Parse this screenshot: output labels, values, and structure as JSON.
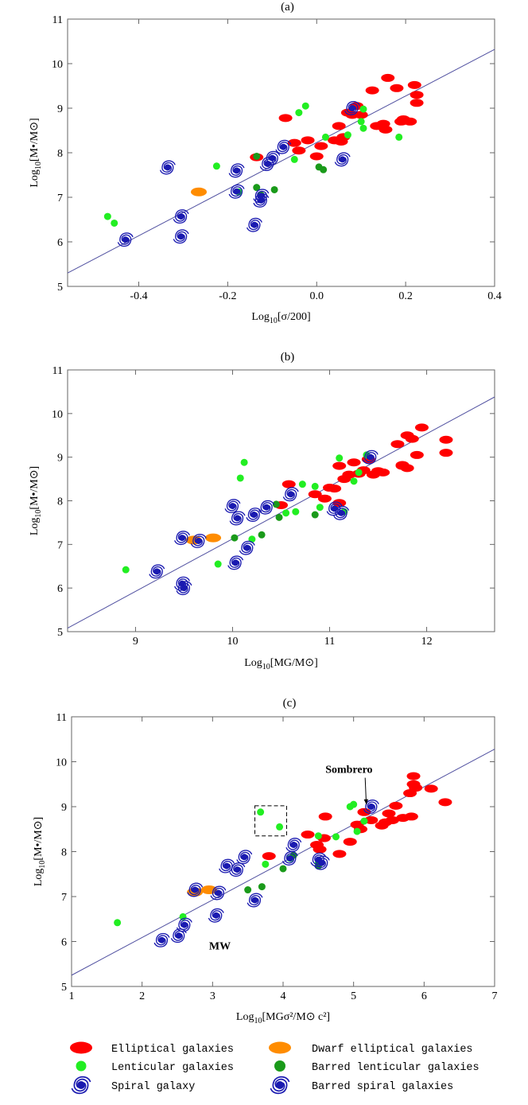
{
  "colors": {
    "elliptical": "#ff0000",
    "dwarf": "#ff8c00",
    "lenticular": "#22ee22",
    "barred_lenticular": "#1a9a1a",
    "spiral": "#1a1ab0",
    "fit_line": "#5050a0",
    "frame": "#666666"
  },
  "legend": [
    {
      "label": "Elliptical galaxies",
      "icon": "red-ellipse-icon",
      "key": "elliptical"
    },
    {
      "label": "Dwarf elliptical galaxies",
      "icon": "orange-ellipse-icon",
      "key": "dwarf"
    },
    {
      "label": "Lenticular galaxies",
      "icon": "light-green-dot-icon",
      "key": "lenticular"
    },
    {
      "label": "Barred lenticular galaxies",
      "icon": "dark-green-dot-icon",
      "key": "barred_lenticular"
    },
    {
      "label": "Spiral galaxy",
      "icon": "spiral-galaxy-icon",
      "key": "spiral"
    },
    {
      "label": "Barred spiral galaxies",
      "icon": "barred-spiral-galaxy-icon",
      "key": "barred_spiral"
    }
  ],
  "chart_data": [
    {
      "type": "scatter",
      "title": "(a)",
      "xlabel": "Log10[σ/200]",
      "ylabel": "Log10[M•/M⊙]",
      "xlim": [
        -0.56,
        0.4
      ],
      "ylim": [
        5,
        11
      ],
      "xticks": [
        "-0.4",
        "-0.2",
        "0.0",
        "0.2",
        "0.4"
      ],
      "xtick_values": [
        -0.4,
        -0.2,
        0.0,
        0.2,
        0.4
      ],
      "yticks": [
        "5",
        "6",
        "7",
        "8",
        "9",
        "10",
        "11"
      ],
      "ytick_values": [
        5,
        6,
        7,
        8,
        9,
        10,
        11
      ],
      "fit_line": [
        [
          -0.56,
          5.3
        ],
        [
          0.4,
          10.32
        ]
      ],
      "series": [
        {
          "name": "Elliptical galaxies",
          "key": "elliptical",
          "points": [
            [
              -0.07,
              8.78
            ],
            [
              -0.05,
              8.22
            ],
            [
              -0.04,
              8.05
            ],
            [
              -0.02,
              8.28
            ],
            [
              0.0,
              7.92
            ],
            [
              0.01,
              8.15
            ],
            [
              0.04,
              8.28
            ],
            [
              0.05,
              8.6
            ],
            [
              0.055,
              8.25
            ],
            [
              0.06,
              8.35
            ],
            [
              0.07,
              8.9
            ],
            [
              0.08,
              8.85
            ],
            [
              0.09,
              9.05
            ],
            [
              0.1,
              8.85
            ],
            [
              0.125,
              9.4
            ],
            [
              0.135,
              8.6
            ],
            [
              0.15,
              8.65
            ],
            [
              0.155,
              8.52
            ],
            [
              0.16,
              9.68
            ],
            [
              0.18,
              9.45
            ],
            [
              0.19,
              8.7
            ],
            [
              0.195,
              8.75
            ],
            [
              0.21,
              8.7
            ],
            [
              0.22,
              9.52
            ],
            [
              0.225,
              9.3
            ],
            [
              0.225,
              9.12
            ],
            [
              -0.135,
              7.9
            ]
          ]
        },
        {
          "name": "Dwarf elliptical galaxies",
          "key": "dwarf",
          "points": [
            [
              -0.265,
              7.12
            ]
          ]
        },
        {
          "name": "Lenticular galaxies",
          "key": "lenticular",
          "points": [
            [
              -0.47,
              6.57
            ],
            [
              -0.455,
              6.42
            ],
            [
              -0.225,
              7.7
            ],
            [
              -0.175,
              7.12
            ],
            [
              -0.05,
              7.85
            ],
            [
              -0.04,
              8.9
            ],
            [
              -0.025,
              9.05
            ],
            [
              0.02,
              8.35
            ],
            [
              0.07,
              8.4
            ],
            [
              0.1,
              8.7
            ],
            [
              0.105,
              8.98
            ],
            [
              0.105,
              8.55
            ],
            [
              0.185,
              8.35
            ]
          ]
        },
        {
          "name": "Barred lenticular galaxies",
          "key": "barred_lenticular",
          "points": [
            [
              -0.135,
              7.92
            ],
            [
              -0.135,
              7.22
            ],
            [
              -0.125,
              7.05
            ],
            [
              -0.095,
              7.17
            ],
            [
              0.005,
              7.68
            ],
            [
              0.015,
              7.62
            ]
          ]
        },
        {
          "name": "Spiral galaxy",
          "key": "spiral",
          "points": [
            [
              -0.43,
              6.05
            ],
            [
              -0.335,
              7.67
            ],
            [
              -0.305,
              6.57
            ],
            [
              -0.305,
              6.12
            ],
            [
              -0.18,
              7.6
            ],
            [
              -0.18,
              7.13
            ],
            [
              -0.14,
              6.38
            ],
            [
              -0.125,
              7.03
            ],
            [
              -0.125,
              6.93
            ],
            [
              -0.11,
              7.75
            ],
            [
              -0.1,
              7.88
            ],
            [
              -0.075,
              8.13
            ],
            [
              0.058,
              7.85
            ],
            [
              0.08,
              9.0
            ]
          ]
        }
      ]
    },
    {
      "type": "scatter",
      "title": "(b)",
      "xlabel": "Log10[MG/M⊙]",
      "ylabel": "Log10[M•/M⊙]",
      "xlim": [
        8.3,
        12.7
      ],
      "ylim": [
        5,
        11
      ],
      "xticks": [
        "9",
        "10",
        "11",
        "12"
      ],
      "xtick_values": [
        9,
        10,
        11,
        12
      ],
      "yticks": [
        "5",
        "6",
        "7",
        "8",
        "9",
        "10",
        "11"
      ],
      "ytick_values": [
        5,
        6,
        7,
        8,
        9,
        10,
        11
      ],
      "fit_line": [
        [
          8.3,
          5.08
        ],
        [
          12.7,
          10.38
        ]
      ],
      "series": [
        {
          "name": "Elliptical galaxies",
          "key": "elliptical",
          "points": [
            [
              10.5,
              7.9
            ],
            [
              10.58,
              8.38
            ],
            [
              10.85,
              8.15
            ],
            [
              10.95,
              8.05
            ],
            [
              11.0,
              8.3
            ],
            [
              11.05,
              8.28
            ],
            [
              11.1,
              8.8
            ],
            [
              11.1,
              7.95
            ],
            [
              11.15,
              8.5
            ],
            [
              11.2,
              8.6
            ],
            [
              11.25,
              8.88
            ],
            [
              11.3,
              8.62
            ],
            [
              11.35,
              8.7
            ],
            [
              11.4,
              8.95
            ],
            [
              11.45,
              8.6
            ],
            [
              11.5,
              8.68
            ],
            [
              11.55,
              8.65
            ],
            [
              11.7,
              9.3
            ],
            [
              11.75,
              8.8
            ],
            [
              11.8,
              9.5
            ],
            [
              11.8,
              8.75
            ],
            [
              11.85,
              9.42
            ],
            [
              11.9,
              9.05
            ],
            [
              11.95,
              9.68
            ],
            [
              12.2,
              9.4
            ],
            [
              12.2,
              9.1
            ],
            [
              11.75,
              8.82
            ]
          ]
        },
        {
          "name": "Dwarf elliptical galaxies",
          "key": "dwarf",
          "points": [
            [
              9.6,
              7.1
            ],
            [
              9.8,
              7.15
            ]
          ]
        },
        {
          "name": "Lenticular galaxies",
          "key": "lenticular",
          "points": [
            [
              8.9,
              6.42
            ],
            [
              9.85,
              6.55
            ],
            [
              10.08,
              8.52
            ],
            [
              10.12,
              8.88
            ],
            [
              10.2,
              7.12
            ],
            [
              10.55,
              7.72
            ],
            [
              10.65,
              7.75
            ],
            [
              10.72,
              8.38
            ],
            [
              10.85,
              8.33
            ],
            [
              10.9,
              7.85
            ],
            [
              11.1,
              8.98
            ],
            [
              11.15,
              7.75
            ],
            [
              11.25,
              8.45
            ],
            [
              11.3,
              8.65
            ],
            [
              11.38,
              9.05
            ]
          ]
        },
        {
          "name": "Barred lenticular galaxies",
          "key": "barred_lenticular",
          "points": [
            [
              10.02,
              7.15
            ],
            [
              10.3,
              7.22
            ],
            [
              10.45,
              7.92
            ],
            [
              10.48,
              7.62
            ],
            [
              10.85,
              7.68
            ]
          ]
        },
        {
          "name": "Spiral galaxy",
          "key": "spiral",
          "points": [
            [
              9.22,
              6.38
            ],
            [
              9.48,
              6.1
            ],
            [
              9.48,
              7.15
            ],
            [
              9.5,
              6.0
            ],
            [
              9.65,
              7.08
            ],
            [
              10.0,
              7.88
            ],
            [
              10.03,
              6.58
            ],
            [
              10.05,
              7.6
            ],
            [
              10.15,
              6.92
            ],
            [
              10.22,
              7.68
            ],
            [
              10.35,
              7.85
            ],
            [
              10.6,
              8.15
            ],
            [
              11.05,
              7.82
            ],
            [
              11.12,
              7.72
            ],
            [
              11.42,
              9.0
            ]
          ]
        }
      ]
    },
    {
      "type": "scatter",
      "title": "(c)",
      "xlabel": "Log10[MGσ²/M⊙ c²]",
      "ylabel": "Log10[M•/M⊙]",
      "xlim": [
        1,
        7
      ],
      "ylim": [
        5,
        11
      ],
      "xticks": [
        "1",
        "2",
        "3",
        "4",
        "5",
        "6",
        "7"
      ],
      "xtick_values": [
        1,
        2,
        3,
        4,
        5,
        6,
        7
      ],
      "yticks": [
        "5",
        "6",
        "7",
        "8",
        "9",
        "10",
        "11"
      ],
      "ytick_values": [
        5,
        6,
        7,
        8,
        9,
        10,
        11
      ],
      "fit_line": [
        [
          1,
          5.25
        ],
        [
          7,
          10.28
        ]
      ],
      "annotations": [
        {
          "text": "Sombrero",
          "at": [
            5.18,
            9.05
          ],
          "label_pos": [
            4.6,
            9.75
          ]
        },
        {
          "text": "MW",
          "at": [
            3.05,
            6.58
          ],
          "label_pos": [
            2.95,
            5.82
          ]
        }
      ],
      "highlight_box": {
        "x": [
          3.6,
          4.05
        ],
        "y": [
          8.35,
          9.02
        ]
      },
      "series": [
        {
          "name": "Elliptical galaxies",
          "key": "elliptical",
          "points": [
            [
              3.8,
              7.9
            ],
            [
              4.35,
              8.38
            ],
            [
              4.48,
              8.15
            ],
            [
              4.52,
              8.05
            ],
            [
              4.58,
              8.3
            ],
            [
              4.6,
              8.78
            ],
            [
              4.8,
              7.95
            ],
            [
              4.95,
              8.22
            ],
            [
              5.05,
              8.6
            ],
            [
              5.1,
              8.5
            ],
            [
              5.15,
              8.88
            ],
            [
              5.25,
              8.7
            ],
            [
              5.4,
              8.58
            ],
            [
              5.45,
              8.65
            ],
            [
              5.5,
              8.85
            ],
            [
              5.55,
              8.7
            ],
            [
              5.6,
              9.02
            ],
            [
              5.7,
              8.75
            ],
            [
              5.8,
              9.3
            ],
            [
              5.82,
              8.78
            ],
            [
              5.85,
              9.5
            ],
            [
              5.85,
              9.68
            ],
            [
              5.88,
              9.42
            ],
            [
              6.1,
              9.4
            ],
            [
              6.3,
              9.1
            ]
          ]
        },
        {
          "name": "Dwarf elliptical galaxies",
          "key": "dwarf",
          "points": [
            [
              2.75,
              7.1
            ],
            [
              2.95,
              7.15
            ]
          ]
        },
        {
          "name": "Lenticular galaxies",
          "key": "lenticular",
          "points": [
            [
              1.65,
              6.42
            ],
            [
              2.58,
              6.55
            ],
            [
              3.68,
              8.88
            ],
            [
              3.75,
              7.72
            ],
            [
              3.95,
              8.55
            ],
            [
              4.1,
              7.85
            ],
            [
              4.5,
              8.35
            ],
            [
              4.5,
              7.75
            ],
            [
              4.75,
              8.33
            ],
            [
              4.95,
              9.0
            ],
            [
              5.0,
              9.05
            ],
            [
              5.05,
              8.45
            ],
            [
              5.15,
              8.68
            ]
          ]
        },
        {
          "name": "Barred lenticular galaxies",
          "key": "barred_lenticular",
          "points": [
            [
              3.5,
              7.15
            ],
            [
              3.7,
              7.22
            ],
            [
              4.0,
              7.62
            ],
            [
              4.15,
              7.92
            ],
            [
              4.5,
              7.68
            ]
          ]
        },
        {
          "name": "Spiral galaxy",
          "key": "spiral",
          "points": [
            [
              2.28,
              6.03
            ],
            [
              2.52,
              6.13
            ],
            [
              2.6,
              6.37
            ],
            [
              2.75,
              7.15
            ],
            [
              3.05,
              6.58
            ],
            [
              3.08,
              7.08
            ],
            [
              3.2,
              7.68
            ],
            [
              3.35,
              7.6
            ],
            [
              3.45,
              7.88
            ],
            [
              3.6,
              6.92
            ],
            [
              4.1,
              7.85
            ],
            [
              4.15,
              8.15
            ],
            [
              4.5,
              7.82
            ],
            [
              4.55,
              7.75
            ],
            [
              5.25,
              9.0
            ]
          ]
        }
      ]
    }
  ]
}
